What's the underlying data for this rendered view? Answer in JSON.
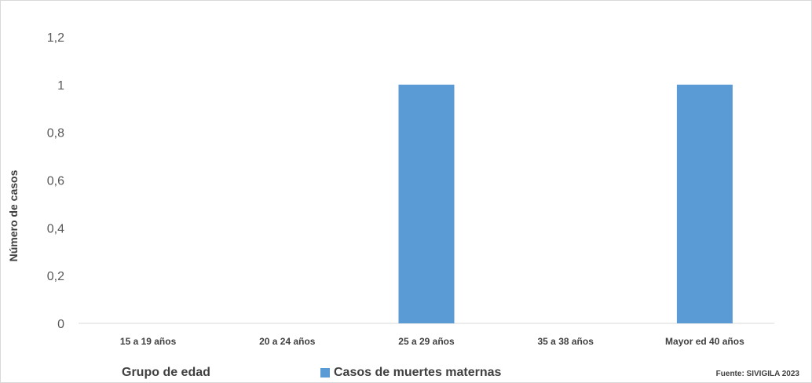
{
  "chart_data": {
    "type": "bar",
    "categories": [
      "15 a 19 años",
      "20 a 24 años",
      "25 a 29 años",
      "35 a 38 años",
      "Mayor ed 40 años"
    ],
    "series": [
      {
        "name": "Casos de muertes maternas",
        "values": [
          0,
          0,
          1,
          0,
          1
        ],
        "color": "#5b9bd5"
      }
    ],
    "ylim": [
      0,
      1.2
    ],
    "yticks": [
      "0",
      "0,2",
      "0,4",
      "0,6",
      "0,8",
      "1",
      "1,2"
    ],
    "ylabel": "Número de casos",
    "xlabel": "Grupo de edad",
    "legend": "bottom",
    "gridlines": false
  },
  "source_note": "Fuente: SIVIGILA 2023",
  "colors": {
    "bar": "#5b9bd5",
    "axis": "#d9d9d9"
  }
}
